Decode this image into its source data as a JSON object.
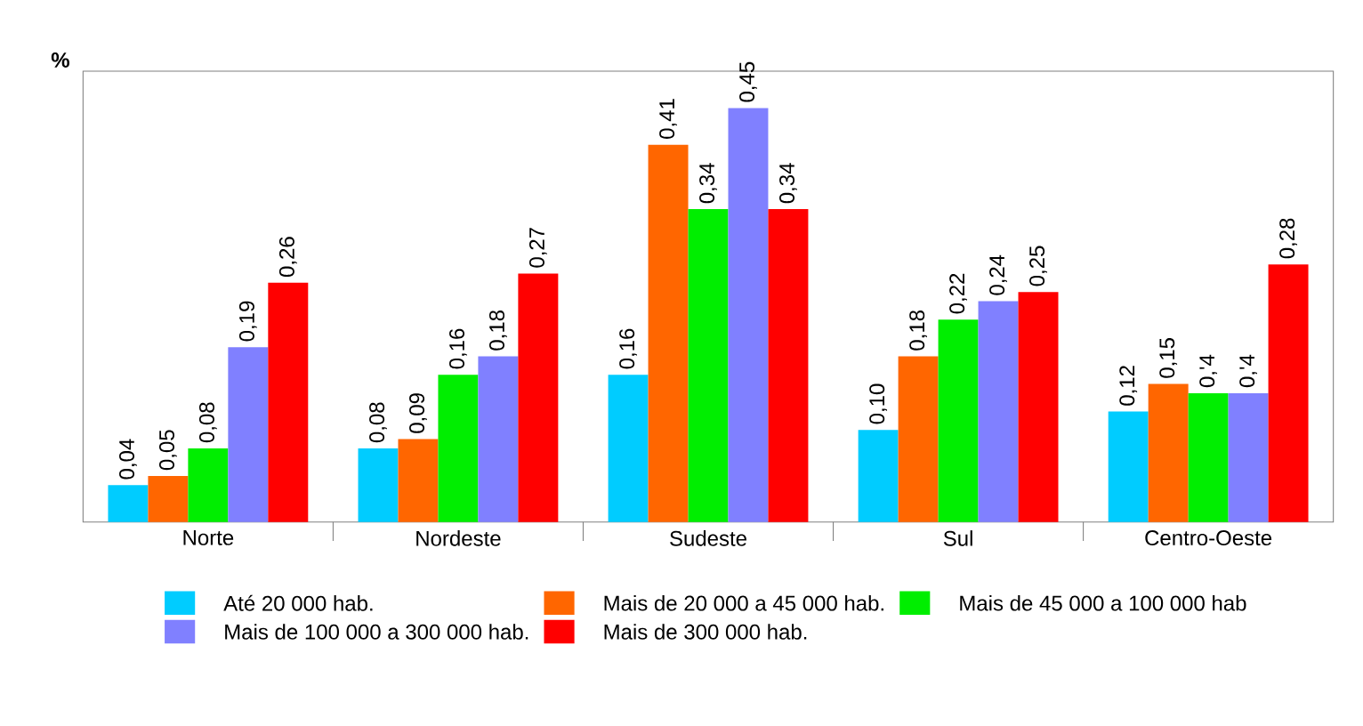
{
  "chart_data": {
    "type": "bar",
    "ylabel": "%",
    "categories": [
      "Norte",
      "Nordeste",
      "Sudeste",
      "Sul",
      "Centro-Oeste"
    ],
    "series": [
      {
        "name": "Até 20 000 hab.",
        "color": "#00ccff",
        "values": [
          0.04,
          0.08,
          0.16,
          0.1,
          0.12
        ],
        "value_labels": [
          "0,04",
          "0,08",
          "0,16",
          "0,10",
          "0,12"
        ]
      },
      {
        "name": "Mais de 20 000 a 45 000 hab.",
        "color": "#ff6600",
        "values": [
          0.05,
          0.09,
          0.41,
          0.18,
          0.15
        ],
        "value_labels": [
          "0,05",
          "0,09",
          "0,41",
          "0,18",
          "0,15"
        ]
      },
      {
        "name": "Mais de 45 000 a 100 000 hab",
        "color": "#00ee00",
        "values": [
          0.08,
          0.16,
          0.34,
          0.22,
          0.14
        ],
        "value_labels": [
          "0,08",
          "0,16",
          "0,34",
          "0,22",
          "0,'4"
        ]
      },
      {
        "name": "Mais de 100 000 a 300 000 hab.",
        "color": "#8080ff",
        "values": [
          0.19,
          0.18,
          0.45,
          0.24,
          0.14
        ],
        "value_labels": [
          "0,19",
          "0,18",
          "0,45",
          "0,24",
          "0,'4"
        ]
      },
      {
        "name": "Mais de 300 000 hab.",
        "color": "#ff0000",
        "values": [
          0.26,
          0.27,
          0.34,
          0.25,
          0.28
        ],
        "value_labels": [
          "0,26",
          "0,27",
          "0,34",
          "0,25",
          "0,28"
        ]
      }
    ],
    "ylim": [
      0,
      0.49
    ],
    "legend": "bottom",
    "grid": false
  }
}
